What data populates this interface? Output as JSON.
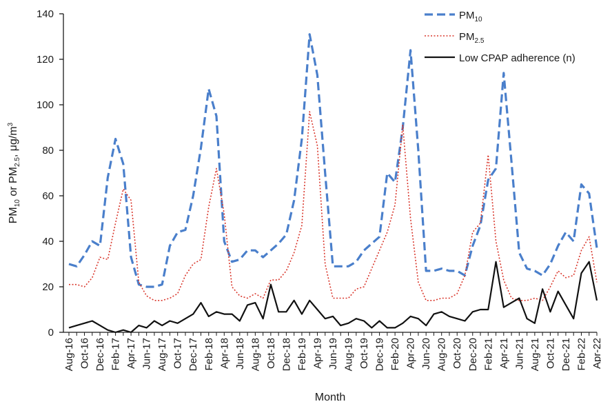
{
  "chart_data": {
    "type": "line",
    "title": "",
    "xlabel": "Month",
    "ylabel": {
      "main": "PM",
      "sub1": "10",
      "mid": " or PM",
      "sub2": "2.5",
      "unit": ", μg/m",
      "sup": "3"
    },
    "ylim": [
      0,
      140
    ],
    "yticks": [
      0,
      20,
      40,
      60,
      80,
      100,
      120,
      140
    ],
    "grid": false,
    "legend_position": "top-right",
    "x": [
      "Aug-16",
      "Sep-16",
      "Oct-16",
      "Nov-16",
      "Dec-16",
      "Jan-17",
      "Feb-17",
      "Mar-17",
      "Apr-17",
      "May-17",
      "Jun-17",
      "Jul-17",
      "Aug-17",
      "Sep-17",
      "Oct-17",
      "Nov-17",
      "Dec-17",
      "Jan-18",
      "Feb-18",
      "Mar-18",
      "Apr-18",
      "May-18",
      "Jun-18",
      "Jul-18",
      "Aug-18",
      "Sep-18",
      "Oct-18",
      "Nov-18",
      "Dec-18",
      "Jan-19",
      "Feb-19",
      "Mar-19",
      "Apr-19",
      "May-19",
      "Jun-19",
      "Jul-19",
      "Aug-19",
      "Sep-19",
      "Oct-19",
      "Nov-19",
      "Dec-19",
      "Jan-20",
      "Feb-20",
      "Mar-20",
      "Apr-20",
      "May-20",
      "Jun-20",
      "Jul-20",
      "Aug-20",
      "Sep-20",
      "Oct-20",
      "Nov-20",
      "Dec-20",
      "Jan-21",
      "Feb-21",
      "Mar-21",
      "Apr-21",
      "May-21",
      "Jun-21",
      "Jul-21",
      "Aug-21",
      "Sep-21",
      "Oct-21",
      "Nov-21",
      "Dec-21",
      "Jan-22",
      "Feb-22",
      "Mar-22",
      "Apr-22"
    ],
    "xtick_labels": [
      "Aug-16",
      "Oct-16",
      "Dec-16",
      "Feb-17",
      "Apr-17",
      "Jun-17",
      "Aug-17",
      "Oct-17",
      "Dec-17",
      "Feb-18",
      "Apr-18",
      "Jun-18",
      "Aug-18",
      "Oct-18",
      "Dec-18",
      "Feb-19",
      "Apr-19",
      "Jun-19",
      "Aug-19",
      "Oct-19",
      "Dec-19",
      "Feb-20",
      "Apr-20",
      "Jun-20",
      "Aug-20",
      "Oct-20",
      "Dec-20",
      "Feb-21",
      "Apr-21",
      "Jun-21",
      "Aug-21",
      "Oct-21",
      "Dec-21",
      "Feb-22",
      "Apr-22"
    ],
    "series": [
      {
        "name": "PM10",
        "legend_main": "PM",
        "legend_sub": "10",
        "color": "#4a7fcb",
        "style": "dashed",
        "values": [
          30,
          29,
          34,
          40,
          38,
          68,
          85,
          74,
          33,
          21,
          20,
          20,
          21,
          38,
          44,
          45,
          60,
          81,
          107,
          95,
          40,
          31,
          32,
          36,
          36,
          33,
          36,
          39,
          43,
          58,
          85,
          131,
          113,
          70,
          29,
          29,
          29,
          31,
          36,
          39,
          42,
          70,
          66,
          90,
          124,
          80,
          27,
          27,
          28,
          27,
          27,
          25,
          38,
          47,
          67,
          72,
          114,
          75,
          35,
          28,
          27,
          25,
          30,
          38,
          44,
          40,
          65,
          61,
          37
        ]
      },
      {
        "name": "PM2.5",
        "legend_main": "PM",
        "legend_sub": "2.5",
        "color": "#d9362b",
        "style": "dotted",
        "values": [
          21,
          21,
          20,
          24,
          33,
          32,
          48,
          63,
          58,
          22,
          16,
          14,
          14,
          15,
          17,
          25,
          30,
          32,
          55,
          72,
          52,
          20,
          16,
          15,
          17,
          15,
          23,
          23,
          27,
          35,
          47,
          97,
          82,
          30,
          15,
          15,
          15,
          19,
          20,
          28,
          36,
          44,
          56,
          91,
          50,
          22,
          14,
          14,
          15,
          15,
          17,
          25,
          44,
          48,
          78,
          40,
          23,
          15,
          14,
          14,
          15,
          14,
          20,
          27,
          24,
          25,
          36,
          42,
          22
        ]
      },
      {
        "name": "Low CPAP adherence (n)",
        "color": "#111111",
        "style": "solid",
        "values": [
          2,
          3,
          4,
          5,
          3,
          1,
          0,
          1,
          0,
          3,
          2,
          5,
          3,
          5,
          4,
          6,
          8,
          13,
          7,
          9,
          8,
          8,
          5,
          12,
          13,
          6,
          21,
          9,
          9,
          14,
          8,
          14,
          10,
          6,
          7,
          3,
          4,
          6,
          5,
          2,
          5,
          2,
          2,
          4,
          7,
          6,
          3,
          8,
          9,
          7,
          6,
          5,
          9,
          10,
          10,
          31,
          11,
          13,
          15,
          6,
          4,
          19,
          9,
          18,
          12,
          6,
          26,
          31,
          14
        ]
      }
    ]
  }
}
